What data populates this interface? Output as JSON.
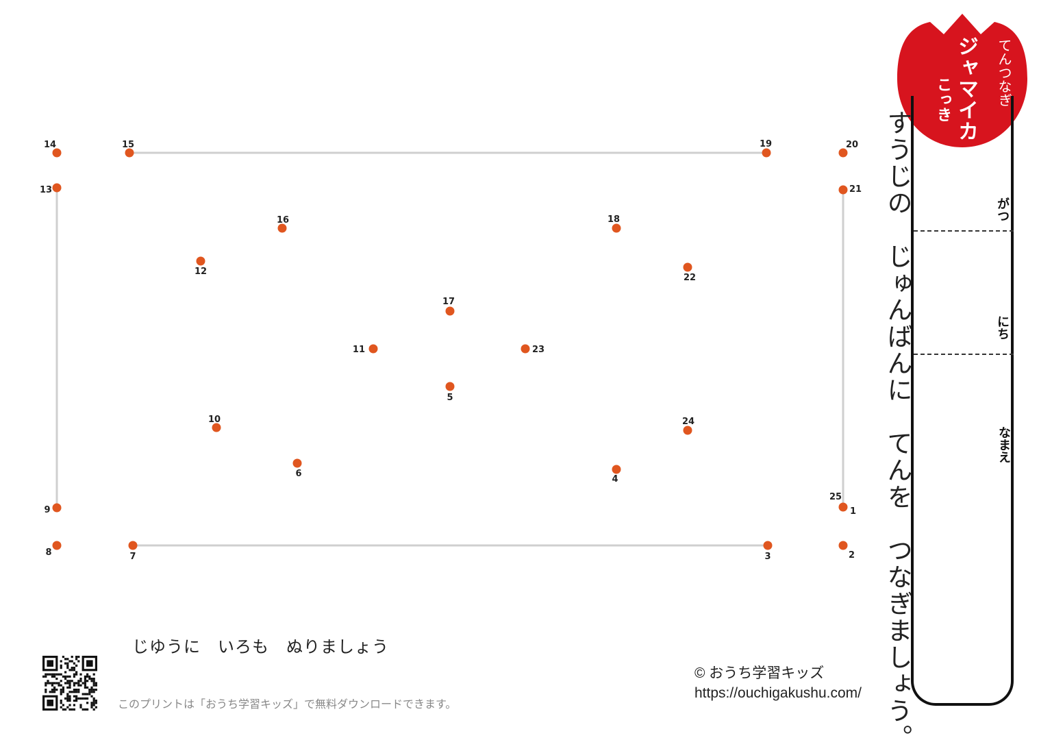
{
  "header": {
    "badge_small": "てんつなぎ",
    "badge_title": "ジャマイカ",
    "badge_subtitle": "こっき",
    "badge_color": "#d7141e"
  },
  "instruction": "すうじの　じゅんばんに　てんを　つなぎましょう。",
  "fields": {
    "month_label": "がつ",
    "day_label": "にち",
    "name_label": "なまえ"
  },
  "puzzle": {
    "dot_color": "#e0561f",
    "guide_color": "#cfcfcf",
    "points": [
      {
        "n": "1"
      },
      {
        "n": "2"
      },
      {
        "n": "3"
      },
      {
        "n": "4"
      },
      {
        "n": "5"
      },
      {
        "n": "6"
      },
      {
        "n": "7"
      },
      {
        "n": "8"
      },
      {
        "n": "9"
      },
      {
        "n": "10"
      },
      {
        "n": "11"
      },
      {
        "n": "12"
      },
      {
        "n": "13"
      },
      {
        "n": "14"
      },
      {
        "n": "15"
      },
      {
        "n": "16"
      },
      {
        "n": "17"
      },
      {
        "n": "18"
      },
      {
        "n": "19"
      },
      {
        "n": "20"
      },
      {
        "n": "21"
      },
      {
        "n": "22"
      },
      {
        "n": "23"
      },
      {
        "n": "24"
      },
      {
        "n": "25"
      }
    ]
  },
  "footer": {
    "color_note": "じゆうに　いろも　ぬりましょう",
    "download_note": "このプリントは「おうち学習キッズ」で無料ダウンロードできます。",
    "copyright": "© おうち学習キッズ",
    "url": "https://ouchigakushu.com/"
  },
  "qr_icon": "qr-code-icon"
}
